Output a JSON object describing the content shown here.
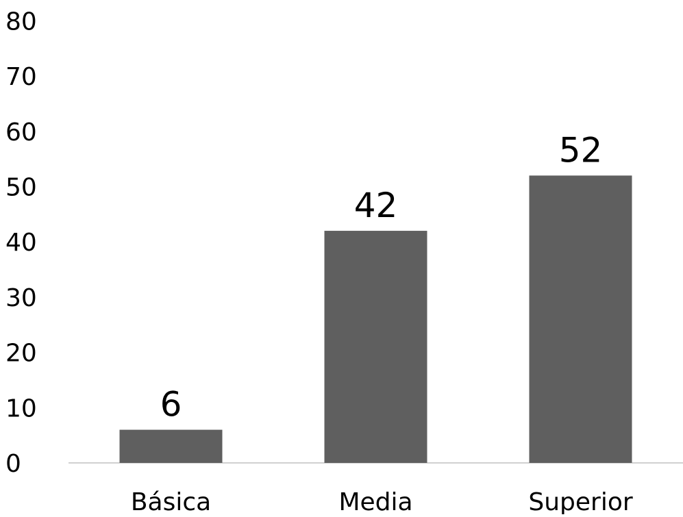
{
  "chart_data": {
    "type": "bar",
    "categories": [
      "Básica",
      "Media",
      "Superior"
    ],
    "values": [
      6,
      42,
      52
    ],
    "data_labels": [
      "6",
      "42",
      "52"
    ],
    "yticks": [
      "0",
      "10",
      "20",
      "30",
      "40",
      "50",
      "60",
      "70",
      "80"
    ],
    "ylim": [
      0,
      80
    ],
    "title": "",
    "xlabel": "",
    "ylabel": "",
    "grid": false,
    "legend": "none",
    "bar_color": "#5f5f5f",
    "axis_color": "#d0d0d0"
  }
}
